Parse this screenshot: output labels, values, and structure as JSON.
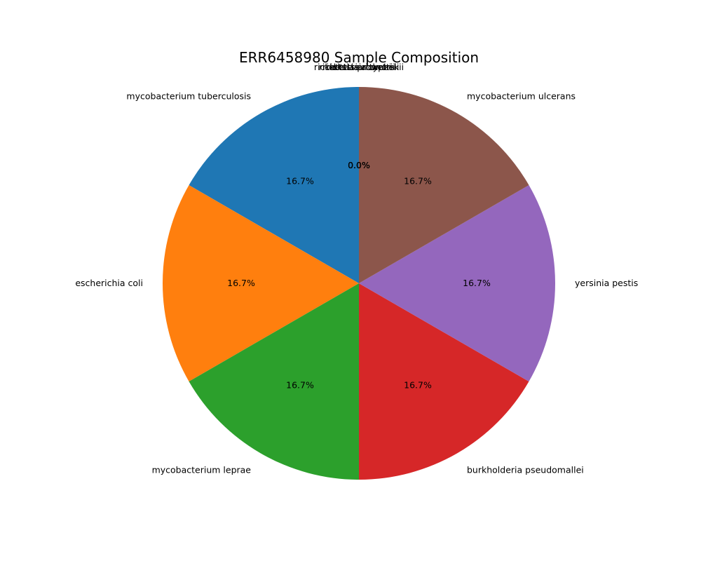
{
  "chart_data": {
    "type": "pie",
    "title": "ERR6458980 Sample Composition",
    "slices": [
      {
        "label": "rickettsia rickettsii",
        "value": 0,
        "percent_label": "0.0%",
        "color": "#1f77b4"
      },
      {
        "label": "rickettsia prowazekii",
        "value": 0,
        "percent_label": "0.0%",
        "color": "#ff7f0e"
      },
      {
        "label": "rickettsia typhi",
        "value": 0,
        "percent_label": "0.0%",
        "color": "#2ca02c"
      },
      {
        "label": "rickettsia conorii",
        "value": 0,
        "percent_label": "0.0%",
        "color": "#d62728"
      },
      {
        "label": "mycobacterium tuberculosis",
        "value": 1,
        "percent_label": "16.7%",
        "color": "#1f77b4"
      },
      {
        "label": "escherichia coli",
        "value": 1,
        "percent_label": "16.7%",
        "color": "#ff7f0e"
      },
      {
        "label": "mycobacterium leprae",
        "value": 1,
        "percent_label": "16.7%",
        "color": "#2ca02c"
      },
      {
        "label": "burkholderia pseudomallei",
        "value": 1,
        "percent_label": "16.7%",
        "color": "#d62728"
      },
      {
        "label": "yersinia pestis",
        "value": 1,
        "percent_label": "16.7%",
        "color": "#9467bd"
      },
      {
        "label": "mycobacterium ulcerans",
        "value": 1,
        "percent_label": "16.7%",
        "color": "#8c564b"
      }
    ],
    "start_angle": "top",
    "direction": "counterclockwise",
    "legend": "none",
    "grid": false
  }
}
